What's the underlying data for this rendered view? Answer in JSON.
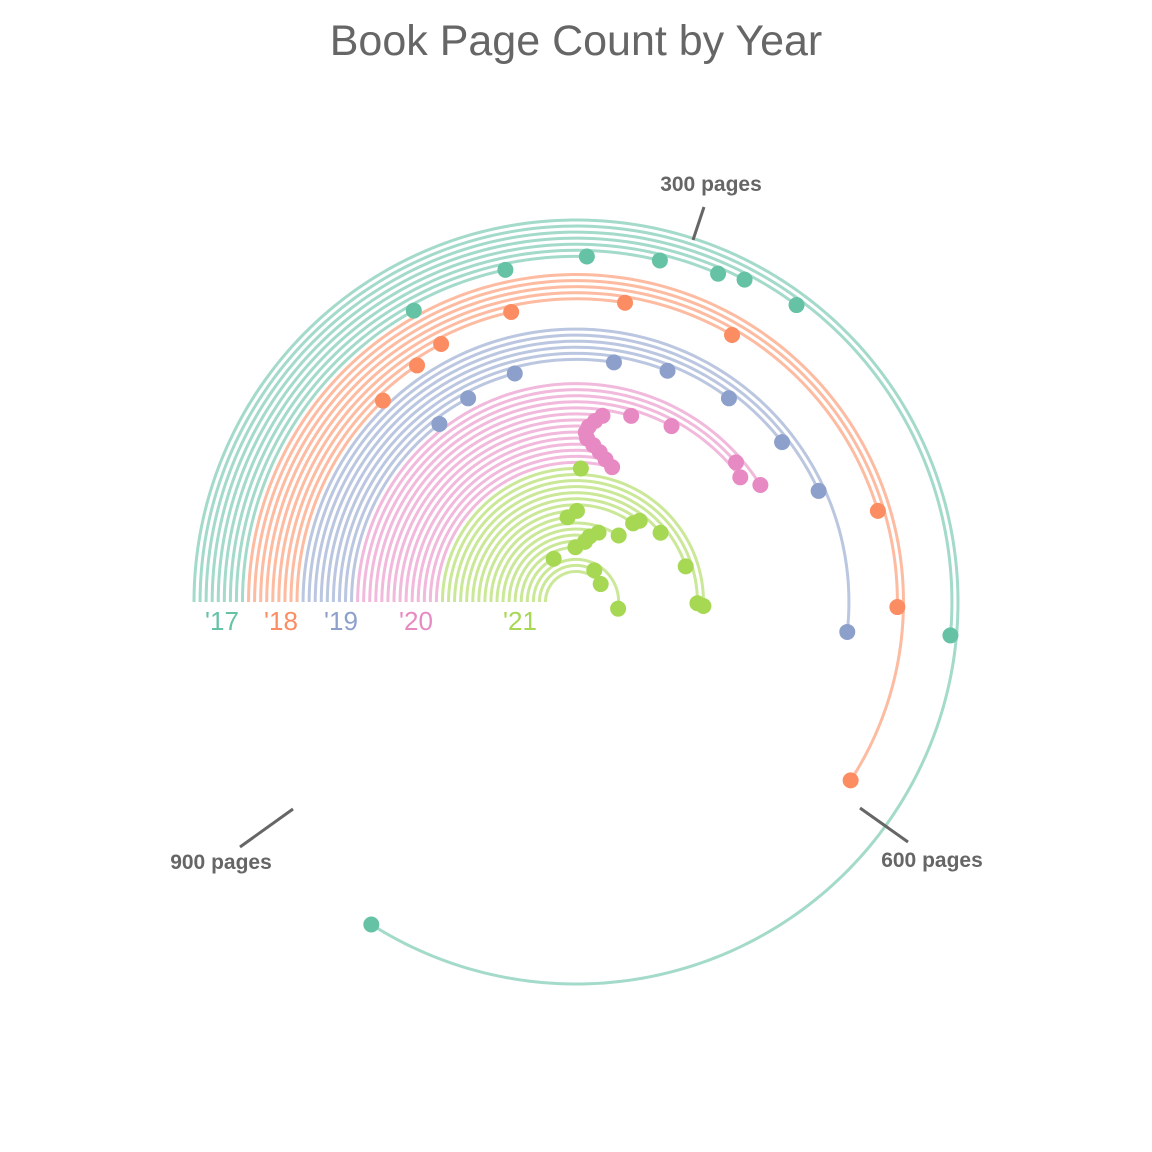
{
  "chart_data": {
    "type": "radial-arc",
    "title": "Book Page Count by Year",
    "angle_scale": {
      "pages_per_quarter_turn": 300,
      "start": "left-horizontal",
      "direction": "clockwise"
    },
    "series": [
      {
        "name": "'17",
        "label": "'17",
        "color": "#66c2a5",
        "pages": [
          1008,
          617,
          422,
          392,
          378,
          346,
          306,
          260,
          203
        ]
      },
      {
        "name": "'18",
        "label": "'18",
        "color": "#fc8d62",
        "pages": [
          710,
          603,
          544,
          401,
          331,
          258,
          208,
          187,
          154
        ]
      },
      {
        "name": "'19",
        "label": "'19",
        "color": "#8da0cb",
        "pages": [
          621,
          518,
          474,
          423,
          372,
          330,
          250,
          207,
          175
        ]
      },
      {
        "name": "'20",
        "label": "'20",
        "color": "#e78ac3",
        "pages": [
          492,
          463,
          476,
          395,
          355,
          327,
          320,
          314,
          311,
          313,
          321,
          330,
          339,
          350
        ]
      },
      {
        "name": "'21",
        "label": "'21",
        "color": "#a6d854",
        "pages": [
          307,
          606,
          602,
          540,
          469,
          427,
          420,
          302,
          281,
          409,
          360,
          339,
          328,
          298,
          209,
          630,
          400,
          480
        ]
      }
    ],
    "annotations": [
      {
        "text": "300 pages",
        "pages": 300
      },
      {
        "text": "600 pages",
        "pages": 600
      },
      {
        "text": "900 pages",
        "pages": 900
      }
    ],
    "legend": "none",
    "grid": false
  }
}
